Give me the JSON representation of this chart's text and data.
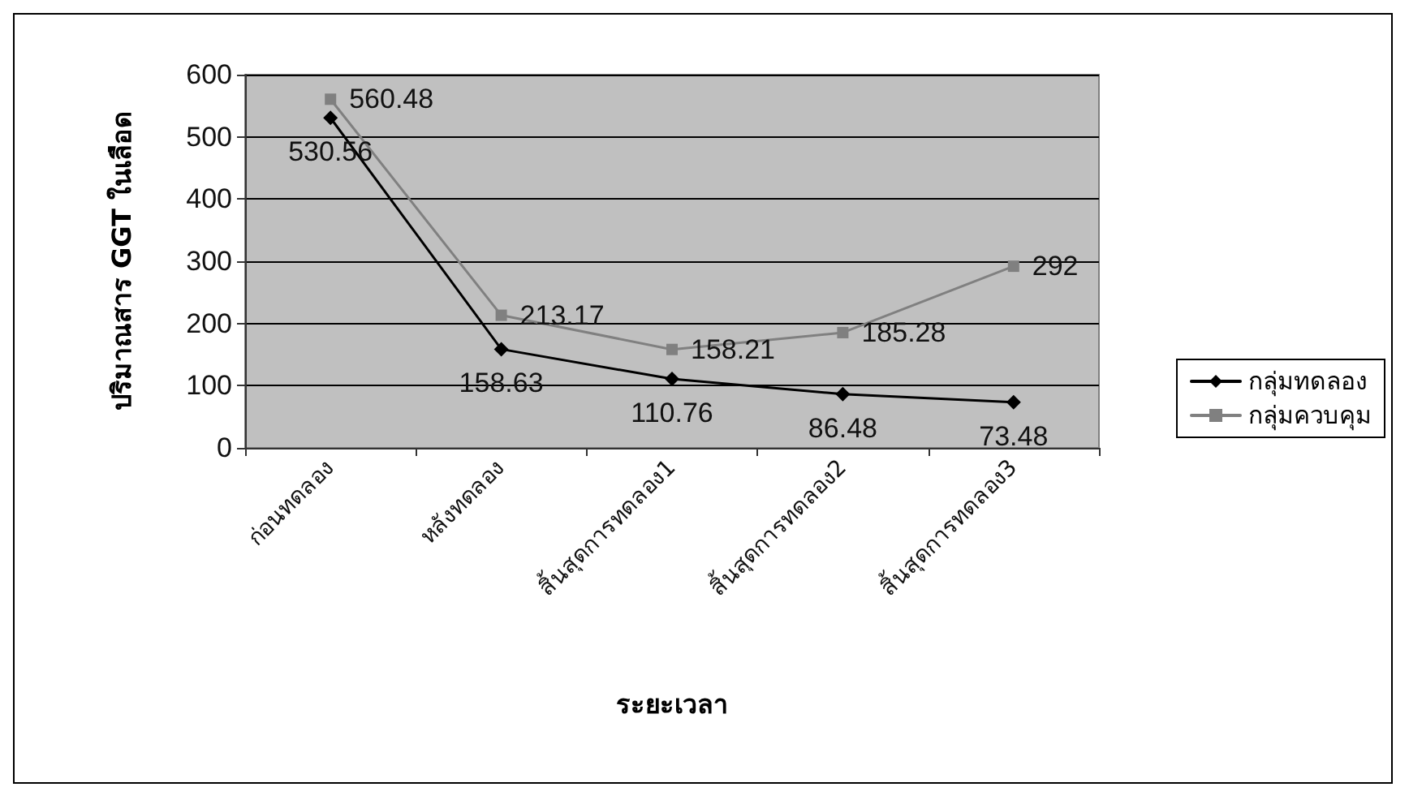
{
  "chart_data": {
    "type": "line",
    "xlabel": "ระยะเวลา",
    "ylabel": "ปริมาณสาร GGT ในเลือด",
    "categories": [
      "ก่อนทดลอง",
      "หลังทดลอง",
      "สิ้นสุดการทดลอง1",
      "สิ้นสุดการทดลอง2",
      "สิ้นสุดการทดลอง3"
    ],
    "series": [
      {
        "name": "กลุ่มทดลอง",
        "color": "#000000",
        "marker": "diamond",
        "values": [
          530.56,
          158.63,
          110.76,
          86.48,
          73.48
        ]
      },
      {
        "name": "กลุ่มควบคุม",
        "color": "#808080",
        "marker": "square",
        "values": [
          560.48,
          213.17,
          158.21,
          185.28,
          292
        ]
      }
    ],
    "ylim": [
      0,
      600
    ],
    "yticks": [
      0,
      100,
      200,
      300,
      400,
      500,
      600
    ],
    "grid": "y",
    "legend": "right",
    "data_labels": true,
    "line_style": "solid"
  }
}
